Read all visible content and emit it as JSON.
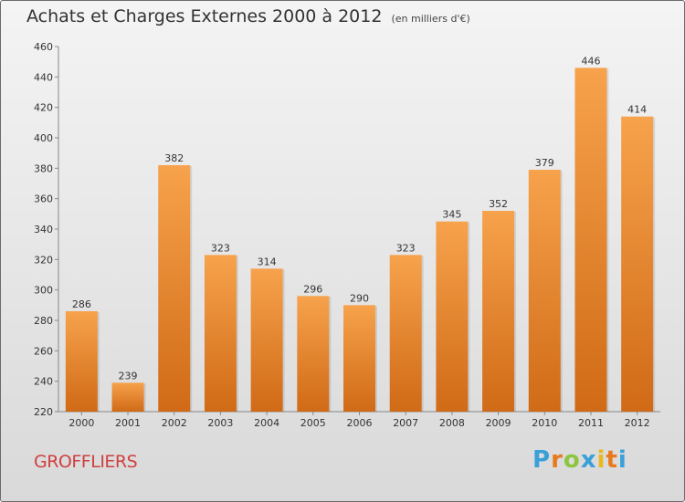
{
  "title": "Achats et Charges Externes 2000 à 2012",
  "subtitle": "(en milliers d'€)",
  "commune": "GROFFLIERS",
  "logo": {
    "letters": [
      "P",
      "r",
      "o",
      "x",
      "i",
      "t",
      "i"
    ],
    "colors": [
      "#3aa0d8",
      "#e87a1e",
      "#8cc63e",
      "#3aa0d8",
      "#e8b81e",
      "#e87a1e",
      "#3aa0d8"
    ]
  },
  "colors": {
    "bar_light": "#f7a24c",
    "bar_dark": "#d06a16",
    "axis": "#888888"
  },
  "chart_data": {
    "type": "bar",
    "title": "Achats et Charges Externes 2000 à 2012",
    "subtitle": "(en milliers d'€)",
    "categories": [
      "2000",
      "2001",
      "2002",
      "2003",
      "2004",
      "2005",
      "2006",
      "2007",
      "2008",
      "2009",
      "2010",
      "2011",
      "2012"
    ],
    "values": [
      286,
      239,
      382,
      323,
      314,
      296,
      290,
      323,
      345,
      352,
      379,
      446,
      414
    ],
    "ylim": [
      220,
      460
    ],
    "yticks": [
      220,
      240,
      260,
      280,
      300,
      320,
      340,
      360,
      380,
      400,
      420,
      440,
      460
    ],
    "grid": false,
    "legend": "none"
  }
}
